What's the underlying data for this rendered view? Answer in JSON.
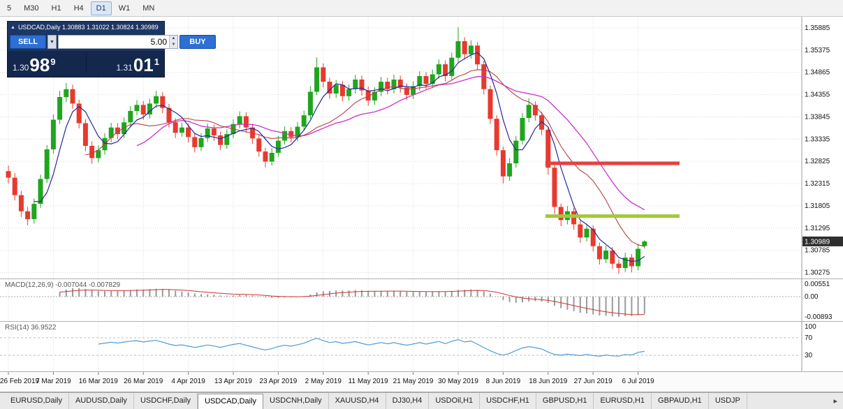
{
  "colors": {
    "up": "#1fa51f",
    "down": "#e8392e",
    "ma_fast": "#26269e",
    "ma_mid": "#b84040",
    "ma_slow": "#cc2fcb",
    "resistance": "#e74040",
    "support": "#a2c93a",
    "macd_hist": "#9a9a9a",
    "macd_signal": "#cc3333",
    "rsi": "#4f9bd5",
    "panel_navy": "#16294e",
    "button_blue": "#2d6fd2"
  },
  "icons": {
    "collapse": "▲",
    "dropdown": "▼",
    "spin_up": "▲",
    "spin_down": "▼",
    "scroll_right": "▸"
  },
  "toolbar": {
    "timeframes": [
      {
        "label": "5",
        "active": false
      },
      {
        "label": "M30",
        "active": false
      },
      {
        "label": "H1",
        "active": false
      },
      {
        "label": "H4",
        "active": false
      },
      {
        "label": "D1",
        "active": true
      },
      {
        "label": "W1",
        "active": false
      },
      {
        "label": "MN",
        "active": false
      }
    ]
  },
  "trade_panel": {
    "title": "USDCAD,Daily 1.30883 1.31022 1.30824 1.30989",
    "sell_label": "SELL",
    "buy_label": "BUY",
    "volume": "5.00",
    "bid": {
      "small": "1.30",
      "big": "98",
      "sup": "9"
    },
    "ask": {
      "small": "1.31",
      "big": "01",
      "sup": "1"
    }
  },
  "price_axis": {
    "labels": [
      "1.35885",
      "1.35375",
      "1.34865",
      "1.34355",
      "1.33845",
      "1.33335",
      "1.32825",
      "1.32315",
      "1.31805",
      "1.31295",
      "1.30785",
      "1.30275"
    ],
    "current": "1.30989"
  },
  "macd_panel": {
    "label": "MACD(12,26,9) -0.007044 -0.007829",
    "axis_top": "0.00551",
    "axis_zero": "0.00",
    "axis_bottom": "-0.00893"
  },
  "rsi_panel": {
    "label": "RSI(14) 36.9522",
    "axis_top": "100",
    "axis_upper": "70",
    "axis_lower": "30"
  },
  "tabs": {
    "items": [
      {
        "label": "EURUSD,Daily",
        "active": false
      },
      {
        "label": "AUDUSD,Daily",
        "active": false
      },
      {
        "label": "USDCHF,Daily",
        "active": false
      },
      {
        "label": "USDCAD,Daily",
        "active": true
      },
      {
        "label": "USDCNH,Daily",
        "active": false
      },
      {
        "label": "XAUUSD,H4",
        "active": false
      },
      {
        "label": "DJ30,H4",
        "active": false
      },
      {
        "label": "USDOil,H1",
        "active": false
      },
      {
        "label": "USDCHF,H1",
        "active": false
      },
      {
        "label": "GBPUSD,H1",
        "active": false
      },
      {
        "label": "EURUSD,H1",
        "active": false
      },
      {
        "label": "GBPAUD,H1",
        "active": false
      },
      {
        "label": "USDJP",
        "active": false
      }
    ]
  },
  "chart_data": {
    "type": "candlestick",
    "symbol": "USDCAD",
    "timeframe": "Daily",
    "last_bar": {
      "open": 1.30883,
      "high": 1.31022,
      "low": 1.30824,
      "close": 1.30989
    },
    "bid": "1.30989",
    "ask": "1.31011",
    "y_range": [
      1.3014,
      1.3606
    ],
    "x_labels": [
      "26 Feb 2019",
      "7 Mar 2019",
      "16 Mar 2019",
      "26 Mar 2019",
      "4 Apr 2019",
      "13 Apr 2019",
      "23 Apr 2019",
      "2 May 2019",
      "11 May 2019",
      "21 May 2019",
      "30 May 2019",
      "8 Jun 2019",
      "18 Jun 2019",
      "27 Jun 2019",
      "6 Jul 2019"
    ],
    "label_every": 7,
    "candles": [
      [
        1.326,
        1.3273,
        1.3232,
        1.3245
      ],
      [
        1.3245,
        1.3256,
        1.3193,
        1.3205
      ],
      [
        1.3205,
        1.3215,
        1.3155,
        1.3168
      ],
      [
        1.3168,
        1.3178,
        1.3136,
        1.315
      ],
      [
        1.315,
        1.3197,
        1.314,
        1.3185
      ],
      [
        1.3185,
        1.3252,
        1.3176,
        1.3242
      ],
      [
        1.3242,
        1.332,
        1.3233,
        1.331
      ],
      [
        1.331,
        1.339,
        1.33,
        1.3378
      ],
      [
        1.3378,
        1.3444,
        1.3368,
        1.343
      ],
      [
        1.343,
        1.3462,
        1.3418,
        1.3448
      ],
      [
        1.3448,
        1.3458,
        1.3403,
        1.3415
      ],
      [
        1.3415,
        1.3424,
        1.3358,
        1.337
      ],
      [
        1.337,
        1.3379,
        1.3306,
        1.3318
      ],
      [
        1.3318,
        1.3328,
        1.3277,
        1.329
      ],
      [
        1.329,
        1.3319,
        1.328,
        1.3308
      ],
      [
        1.3308,
        1.3347,
        1.3298,
        1.3336
      ],
      [
        1.3336,
        1.3371,
        1.3326,
        1.336
      ],
      [
        1.336,
        1.337,
        1.3333,
        1.3345
      ],
      [
        1.3345,
        1.3383,
        1.3336,
        1.3372
      ],
      [
        1.3372,
        1.3409,
        1.3362,
        1.3398
      ],
      [
        1.3398,
        1.3423,
        1.3388,
        1.3412
      ],
      [
        1.3412,
        1.3421,
        1.3378,
        1.339
      ],
      [
        1.339,
        1.3426,
        1.3381,
        1.3415
      ],
      [
        1.3415,
        1.3444,
        1.3405,
        1.3432
      ],
      [
        1.3432,
        1.3441,
        1.3393,
        1.3405
      ],
      [
        1.3405,
        1.3414,
        1.336,
        1.3372
      ],
      [
        1.3372,
        1.3381,
        1.3336,
        1.3348
      ],
      [
        1.3348,
        1.3371,
        1.3339,
        1.336
      ],
      [
        1.336,
        1.3369,
        1.3326,
        1.3338
      ],
      [
        1.3338,
        1.3347,
        1.3303,
        1.3315
      ],
      [
        1.3315,
        1.3347,
        1.3306,
        1.3336
      ],
      [
        1.3336,
        1.3369,
        1.3327,
        1.3358
      ],
      [
        1.3358,
        1.3367,
        1.333,
        1.3342
      ],
      [
        1.3342,
        1.3351,
        1.3308,
        1.332
      ],
      [
        1.332,
        1.3356,
        1.3311,
        1.3345
      ],
      [
        1.3345,
        1.3379,
        1.3336,
        1.3368
      ],
      [
        1.3368,
        1.3397,
        1.3358,
        1.3386
      ],
      [
        1.3386,
        1.3395,
        1.3348,
        1.336
      ],
      [
        1.336,
        1.3369,
        1.3323,
        1.3335
      ],
      [
        1.3335,
        1.3344,
        1.3293,
        1.3305
      ],
      [
        1.3305,
        1.3314,
        1.3269,
        1.3282
      ],
      [
        1.3282,
        1.3313,
        1.3273,
        1.3302
      ],
      [
        1.3302,
        1.3341,
        1.3293,
        1.333
      ],
      [
        1.333,
        1.3363,
        1.3321,
        1.3352
      ],
      [
        1.3352,
        1.3361,
        1.3326,
        1.3338
      ],
      [
        1.3338,
        1.3373,
        1.3329,
        1.3362
      ],
      [
        1.3362,
        1.3399,
        1.3353,
        1.3388
      ],
      [
        1.3388,
        1.3455,
        1.338,
        1.3442
      ],
      [
        1.3442,
        1.3521,
        1.3434,
        1.3498
      ],
      [
        1.3498,
        1.3507,
        1.3452,
        1.3465
      ],
      [
        1.3465,
        1.3474,
        1.3426,
        1.3438
      ],
      [
        1.3438,
        1.3469,
        1.3428,
        1.3458
      ],
      [
        1.3458,
        1.3467,
        1.342,
        1.3432
      ],
      [
        1.3432,
        1.3459,
        1.3422,
        1.3448
      ],
      [
        1.3448,
        1.3481,
        1.3438,
        1.347
      ],
      [
        1.347,
        1.3479,
        1.3433,
        1.3445
      ],
      [
        1.3445,
        1.3454,
        1.341,
        1.3422
      ],
      [
        1.3422,
        1.3453,
        1.3412,
        1.3442
      ],
      [
        1.3442,
        1.3476,
        1.3432,
        1.3465
      ],
      [
        1.3465,
        1.3474,
        1.3436,
        1.3448
      ],
      [
        1.3448,
        1.3481,
        1.3438,
        1.347
      ],
      [
        1.347,
        1.3479,
        1.344,
        1.3452
      ],
      [
        1.3452,
        1.3461,
        1.3423,
        1.3435
      ],
      [
        1.3435,
        1.3466,
        1.3425,
        1.3455
      ],
      [
        1.3455,
        1.3489,
        1.3445,
        1.3478
      ],
      [
        1.3478,
        1.3487,
        1.3448,
        1.346
      ],
      [
        1.346,
        1.3493,
        1.345,
        1.3482
      ],
      [
        1.3482,
        1.3516,
        1.3472,
        1.3505
      ],
      [
        1.3505,
        1.3514,
        1.3466,
        1.3478
      ],
      [
        1.3478,
        1.3532,
        1.3469,
        1.352
      ],
      [
        1.352,
        1.359,
        1.351,
        1.3558
      ],
      [
        1.3558,
        1.3567,
        1.3516,
        1.3528
      ],
      [
        1.3528,
        1.356,
        1.3518,
        1.3548
      ],
      [
        1.3548,
        1.3556,
        1.3493,
        1.3505
      ],
      [
        1.3505,
        1.3513,
        1.3436,
        1.3448
      ],
      [
        1.3448,
        1.3456,
        1.3368,
        1.338
      ],
      [
        1.338,
        1.3388,
        1.3296,
        1.3308
      ],
      [
        1.3308,
        1.3316,
        1.3232,
        1.3248
      ],
      [
        1.3248,
        1.329,
        1.3238,
        1.3278
      ],
      [
        1.3278,
        1.3341,
        1.3268,
        1.333
      ],
      [
        1.333,
        1.3393,
        1.3321,
        1.3382
      ],
      [
        1.3382,
        1.3427,
        1.3372,
        1.3412
      ],
      [
        1.3412,
        1.342,
        1.3376,
        1.3388
      ],
      [
        1.3388,
        1.3396,
        1.3343,
        1.3355
      ],
      [
        1.3355,
        1.3362,
        1.3252,
        1.3268
      ],
      [
        1.3268,
        1.3275,
        1.3162,
        1.3178
      ],
      [
        1.3178,
        1.3186,
        1.3134,
        1.3148
      ],
      [
        1.3148,
        1.318,
        1.3138,
        1.3168
      ],
      [
        1.3168,
        1.3176,
        1.3126,
        1.3138
      ],
      [
        1.3138,
        1.3146,
        1.3096,
        1.3108
      ],
      [
        1.3108,
        1.3139,
        1.3099,
        1.3128
      ],
      [
        1.3128,
        1.3136,
        1.3076,
        1.3088
      ],
      [
        1.3088,
        1.3096,
        1.3046,
        1.3058
      ],
      [
        1.3058,
        1.3089,
        1.3049,
        1.3078
      ],
      [
        1.3078,
        1.3086,
        1.3036,
        1.3048
      ],
      [
        1.3048,
        1.3058,
        1.3025,
        1.3038
      ],
      [
        1.3038,
        1.3073,
        1.3029,
        1.3062
      ],
      [
        1.3062,
        1.307,
        1.3028,
        1.3042
      ],
      [
        1.3042,
        1.3093,
        1.3033,
        1.3082
      ],
      [
        1.30883,
        1.31022,
        1.30824,
        1.30989
      ]
    ],
    "overlays": {
      "sma_fast": 5,
      "sma_mid": 13,
      "sma_slow": 21,
      "hlines": [
        {
          "price": 1.3278,
          "color_key": "resistance",
          "from_index": 84
        },
        {
          "price": 1.3157,
          "color_key": "support",
          "from_index": 84
        }
      ]
    },
    "indicators": [
      {
        "type": "macd",
        "fast": 12,
        "slow": 26,
        "signal": 9,
        "values_text": [
          "-0.007044",
          "-0.007829"
        ],
        "axis": [
          0.00551,
          0,
          -0.00893
        ]
      },
      {
        "type": "rsi",
        "period": 14,
        "value_text": "36.9522",
        "levels": [
          70,
          30
        ],
        "axis": [
          100,
          70,
          30
        ]
      }
    ]
  }
}
